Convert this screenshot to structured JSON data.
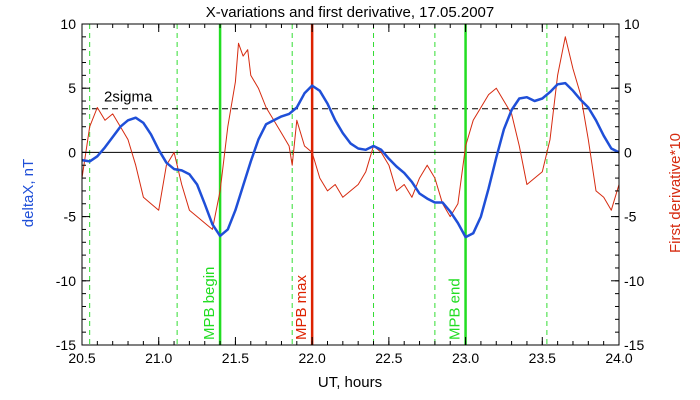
{
  "chart_data": {
    "type": "line",
    "title": "X-variations and first derivative, 17.05.2007",
    "xlabel": "UT, hours",
    "ylabel_left": "deltaX, nT",
    "ylabel_right": "First derivative*10",
    "xlim": [
      20.5,
      24.0
    ],
    "ylim_left": [
      -15,
      10
    ],
    "ylim_right": [
      -15,
      10
    ],
    "x_ticks": [
      "20.5",
      "21.0",
      "21.5",
      "22.0",
      "22.5",
      "23.0",
      "23.5",
      "24.0"
    ],
    "y_ticks": [
      "-15",
      "-10",
      "-5",
      "0",
      "5",
      "10"
    ],
    "grid": false,
    "colors": {
      "deltaX": "#1f4fd8",
      "derivative": "#d62b10",
      "begin_end": "#22dd22",
      "max": "#dd2200",
      "dashed_green": "#33dd33",
      "reference": "#000000"
    },
    "two_sigma": {
      "label": "2sigma",
      "value": 3.4
    },
    "zero_line": 0,
    "dashed_green_x": [
      20.55,
      21.12,
      21.87,
      22.4,
      22.8,
      23.53
    ],
    "markers": [
      {
        "label": "MPB begin",
        "x": 21.4,
        "color_key": "begin_end"
      },
      {
        "label": "MPB max",
        "x": 22.0,
        "color_key": "max"
      },
      {
        "label": "MPB end",
        "x": 23.0,
        "color_key": "begin_end"
      }
    ],
    "series": [
      {
        "key": "deltaX",
        "x": [
          20.5,
          20.55,
          20.6,
          20.65,
          20.7,
          20.75,
          20.8,
          20.85,
          20.9,
          20.95,
          21.0,
          21.05,
          21.1,
          21.15,
          21.2,
          21.25,
          21.3,
          21.35,
          21.4,
          21.45,
          21.5,
          21.55,
          21.6,
          21.65,
          21.7,
          21.75,
          21.8,
          21.85,
          21.9,
          21.95,
          22.0,
          22.05,
          22.1,
          22.15,
          22.2,
          22.25,
          22.3,
          22.35,
          22.4,
          22.45,
          22.5,
          22.55,
          22.6,
          22.65,
          22.7,
          22.75,
          22.8,
          22.85,
          22.9,
          22.95,
          23.0,
          23.05,
          23.1,
          23.15,
          23.2,
          23.25,
          23.3,
          23.35,
          23.4,
          23.45,
          23.5,
          23.55,
          23.6,
          23.65,
          23.7,
          23.75,
          23.8,
          23.85,
          23.9,
          23.95,
          24.0
        ],
        "y": [
          -0.6,
          -0.7,
          -0.3,
          0.4,
          1.2,
          2.0,
          2.5,
          2.7,
          2.3,
          1.4,
          0.2,
          -0.8,
          -1.3,
          -1.4,
          -1.7,
          -2.5,
          -4.0,
          -5.6,
          -6.5,
          -6.0,
          -4.5,
          -2.6,
          -0.7,
          1.0,
          2.2,
          2.5,
          2.8,
          3.0,
          3.5,
          4.6,
          5.2,
          4.8,
          3.8,
          2.5,
          1.5,
          0.7,
          0.3,
          0.2,
          0.5,
          0.2,
          -0.5,
          -1.1,
          -1.6,
          -2.3,
          -3.2,
          -3.6,
          -3.9,
          -3.9,
          -4.6,
          -5.5,
          -6.6,
          -6.3,
          -5.0,
          -2.8,
          -0.4,
          1.8,
          3.3,
          4.2,
          4.3,
          4.0,
          4.2,
          4.7,
          5.3,
          5.4,
          4.8,
          4.1,
          3.5,
          2.5,
          1.3,
          0.3,
          0.0
        ]
      },
      {
        "key": "derivative",
        "x": [
          20.5,
          20.55,
          20.6,
          20.65,
          20.7,
          20.75,
          20.8,
          20.85,
          20.9,
          20.95,
          21.0,
          21.05,
          21.1,
          21.15,
          21.2,
          21.25,
          21.3,
          21.35,
          21.4,
          21.45,
          21.5,
          21.52,
          21.55,
          21.58,
          21.6,
          21.65,
          21.7,
          21.75,
          21.8,
          21.85,
          21.87,
          21.9,
          21.95,
          22.0,
          22.05,
          22.1,
          22.15,
          22.2,
          22.25,
          22.3,
          22.35,
          22.4,
          22.45,
          22.5,
          22.55,
          22.6,
          22.65,
          22.7,
          22.75,
          22.8,
          22.85,
          22.9,
          22.95,
          23.0,
          23.05,
          23.1,
          23.15,
          23.2,
          23.25,
          23.3,
          23.35,
          23.4,
          23.45,
          23.5,
          23.55,
          23.6,
          23.65,
          23.7,
          23.75,
          23.8,
          23.85,
          23.9,
          23.95,
          24.0
        ],
        "y": [
          -2.0,
          2.0,
          3.5,
          2.5,
          3.0,
          2.0,
          1.0,
          -1.0,
          -3.5,
          -4.0,
          -4.5,
          -1.0,
          0.0,
          -2.5,
          -4.5,
          -5.0,
          -5.5,
          -6.0,
          -3.0,
          2.0,
          5.5,
          8.5,
          7.5,
          8.0,
          6.0,
          5.0,
          3.5,
          2.5,
          1.5,
          0.5,
          -1.0,
          2.5,
          0.5,
          0.0,
          -2.0,
          -3.0,
          -2.5,
          -3.5,
          -3.0,
          -2.5,
          -1.5,
          0.5,
          0.0,
          -1.0,
          -3.0,
          -2.5,
          -3.5,
          -2.0,
          -1.0,
          -2.0,
          -4.0,
          -5.0,
          -4.0,
          0.5,
          2.5,
          3.5,
          4.5,
          5.0,
          4.0,
          3.0,
          0.5,
          -2.5,
          -2.0,
          -1.5,
          1.0,
          6.0,
          9.0,
          6.5,
          4.5,
          1.0,
          -3.0,
          -3.5,
          -4.5,
          -2.5
        ]
      }
    ]
  }
}
